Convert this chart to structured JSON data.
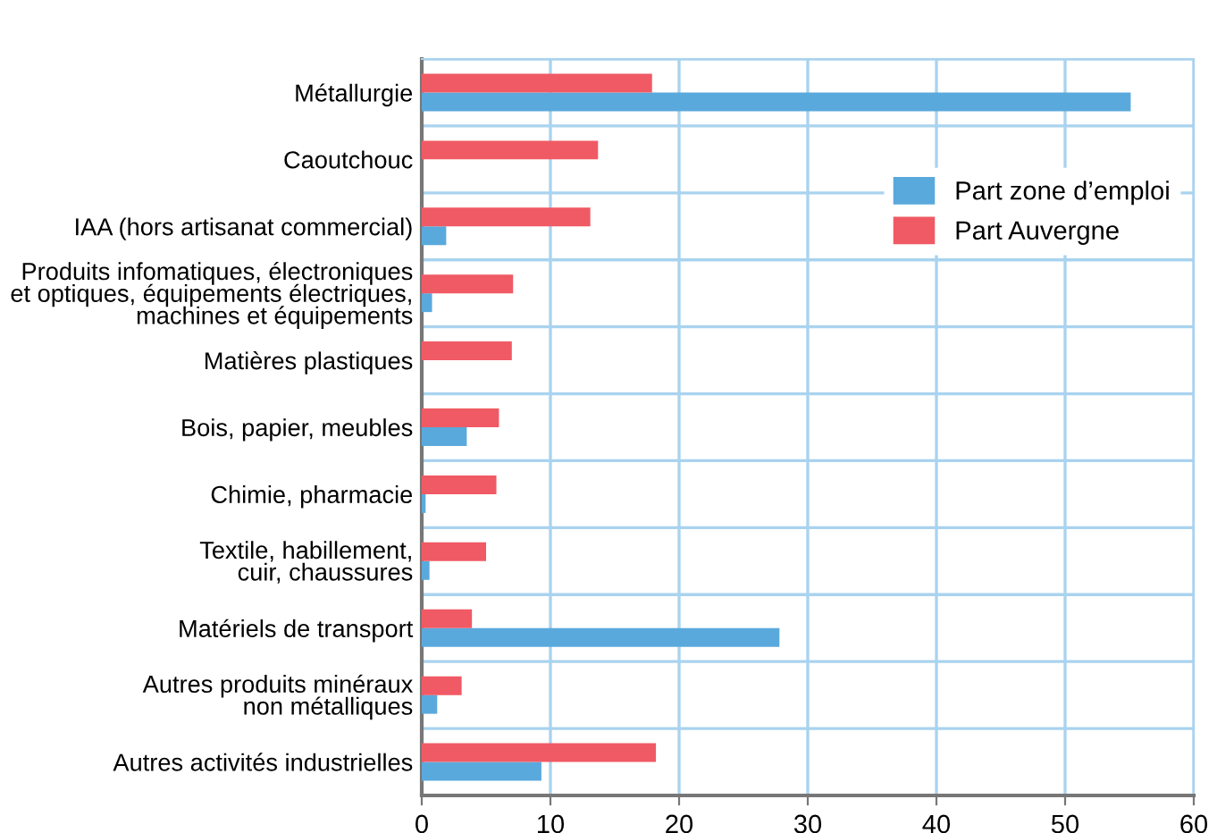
{
  "chart_data": {
    "type": "bar",
    "orientation": "horizontal",
    "categories": [
      "Métallurgie",
      "Caoutchouc",
      "IAA (hors artisanat commercial)",
      "Produits infomatiques, électroniques\net optiques, équipements électriques,\nmachines et équipements",
      "Matières plastiques",
      "Bois, papier, meubles",
      "Chimie, pharmacie",
      "Textile, habillement,\ncuir, chaussures",
      "Matériels de transport",
      "Autres produits minéraux\nnon métalliques",
      "Autres activités industrielles"
    ],
    "series": [
      {
        "name": "Part zone d’emploi",
        "color": "#5aa9dc",
        "values": [
          55.1,
          0,
          1.9,
          0.8,
          0,
          3.5,
          0.3,
          0.6,
          27.8,
          1.2,
          9.3
        ]
      },
      {
        "name": "Part Auvergne",
        "color": "#f05a64",
        "values": [
          17.9,
          13.7,
          13.1,
          7.1,
          7.0,
          6.0,
          5.8,
          5.0,
          3.9,
          3.1,
          18.2
        ]
      }
    ],
    "xlim": [
      0,
      60
    ],
    "xticks": [
      0,
      10,
      20,
      30,
      40,
      50,
      60
    ],
    "grid": true,
    "legend": "upper right"
  }
}
